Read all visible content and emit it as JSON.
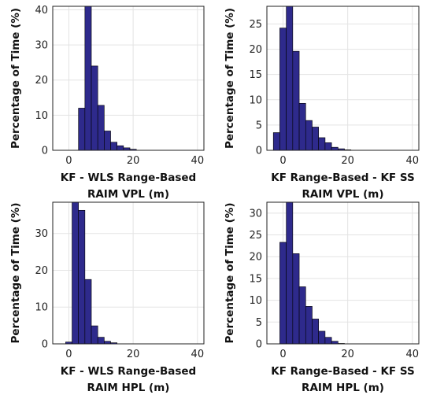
{
  "colors": {
    "bar": "#2e2a8c",
    "edge": "#000000",
    "grid": "#e3e3e3",
    "frame": "#222222"
  },
  "chart_data": [
    {
      "type": "bar",
      "title": "",
      "xlabel_lines": [
        "KF - WLS Range-Based",
        "RAIM VPL (m)"
      ],
      "ylabel": "Percentage of Time (%)",
      "xlim": [
        -5,
        42
      ],
      "ylim": [
        0,
        41
      ],
      "xticks": [
        0,
        20,
        40
      ],
      "yticks": [
        0,
        10,
        20,
        30,
        40
      ],
      "grid": true,
      "bin_width": 2,
      "bin_starts": [
        3,
        5,
        7,
        9,
        11,
        13,
        15,
        17,
        19
      ],
      "values": [
        12,
        41,
        24,
        12.8,
        5.5,
        2.3,
        1.3,
        0.7,
        0.3
      ]
    },
    {
      "type": "bar",
      "title": "",
      "xlabel_lines": [
        "KF Range-Based - KF SS",
        "RAIM VPL (m)"
      ],
      "ylabel": "Percentage of Time (%)",
      "xlim": [
        -5,
        42
      ],
      "ylim": [
        0,
        28.5
      ],
      "xticks": [
        0,
        20,
        40
      ],
      "yticks": [
        0,
        5,
        10,
        15,
        20,
        25
      ],
      "grid": true,
      "bin_width": 2,
      "bin_starts": [
        -3,
        -1,
        1,
        3,
        5,
        7,
        9,
        11,
        13,
        15,
        17,
        19
      ],
      "values": [
        3.5,
        24.2,
        28.5,
        19.6,
        9.3,
        5.9,
        4.6,
        2.5,
        1.5,
        0.6,
        0.3,
        0.1
      ]
    },
    {
      "type": "bar",
      "title": "",
      "xlabel_lines": [
        "KF - WLS Range-Based",
        "RAIM HPL (m)"
      ],
      "ylabel": "Percentage of Time (%)",
      "xlim": [
        -5,
        42
      ],
      "ylim": [
        0,
        38.5
      ],
      "xticks": [
        0,
        20,
        40
      ],
      "yticks": [
        0,
        10,
        20,
        30
      ],
      "grid": true,
      "bin_width": 2,
      "bin_starts": [
        -1,
        1,
        3,
        5,
        7,
        9,
        11,
        13
      ],
      "values": [
        0.5,
        38.5,
        36.3,
        17.5,
        4.9,
        1.8,
        0.7,
        0.3
      ]
    },
    {
      "type": "bar",
      "title": "",
      "xlabel_lines": [
        "KF Range-Based - KF SS",
        "RAIM HPL (m)"
      ],
      "ylabel": "Percentage of Time (%)",
      "xlim": [
        -5,
        42
      ],
      "ylim": [
        0,
        32.5
      ],
      "xticks": [
        0,
        20,
        40
      ],
      "yticks": [
        0,
        5,
        10,
        15,
        20,
        25,
        30
      ],
      "grid": true,
      "bin_width": 2,
      "bin_starts": [
        -1,
        1,
        3,
        5,
        7,
        9,
        11,
        13,
        15,
        17
      ],
      "values": [
        23.3,
        32.5,
        20.7,
        13.1,
        8.6,
        5.7,
        2.9,
        1.5,
        0.6,
        0.1
      ]
    }
  ]
}
